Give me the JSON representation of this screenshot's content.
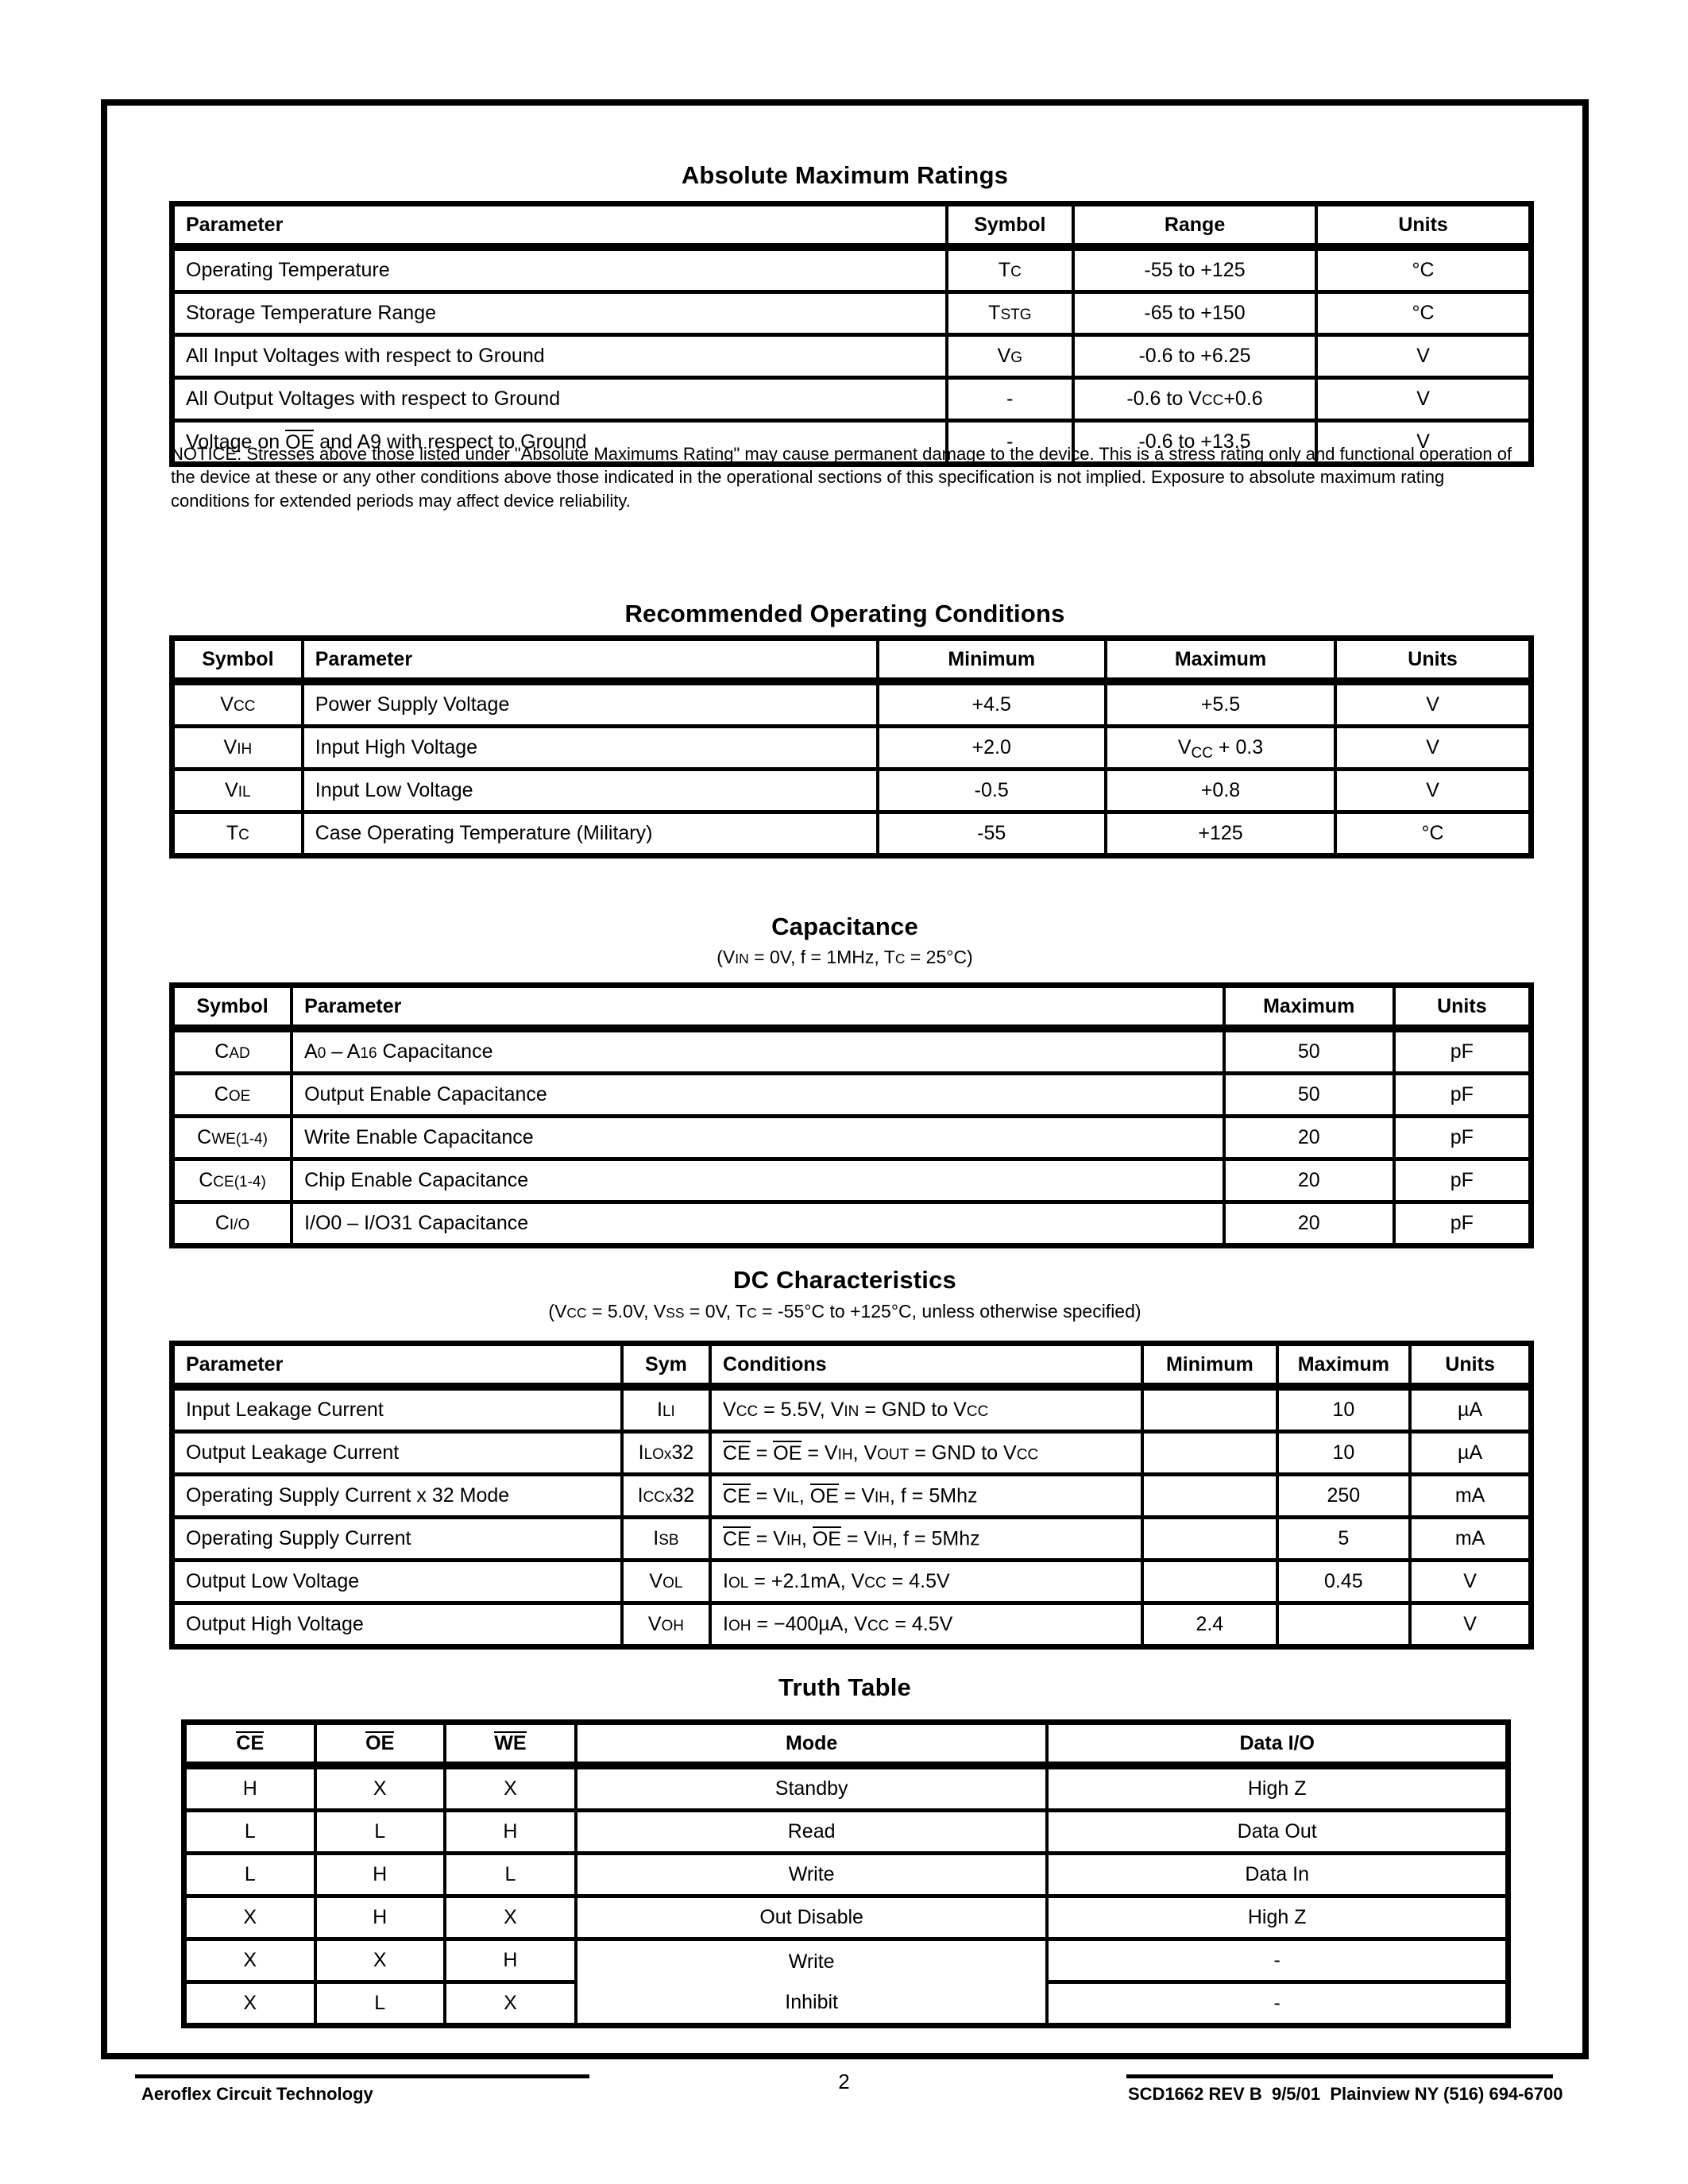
{
  "sections": {
    "abs_max": {
      "title": "Absolute Maximum Ratings",
      "columns": [
        "Parameter",
        "Symbol",
        "Range",
        "Units"
      ],
      "rows": [
        [
          "Operating Temperature",
          [
            {
              "t": "T"
            },
            {
              "s": "C"
            }
          ],
          "-55 to +125",
          "°C"
        ],
        [
          "Storage Temperature Range",
          [
            {
              "t": "T"
            },
            {
              "s": "STG"
            }
          ],
          "-65 to +150",
          "°C"
        ],
        [
          "All Input Voltages with respect to Ground",
          [
            {
              "t": "V"
            },
            {
              "s": "G"
            }
          ],
          "-0.6 to +6.25",
          "V"
        ],
        [
          "All Output Voltages with respect to Ground",
          "-",
          [
            {
              "t": "-0.6 to V"
            },
            {
              "s": "CC"
            },
            {
              "t": "+0.6"
            }
          ],
          "V"
        ],
        [
          [
            {
              "t": "Voltage on "
            },
            {
              "o": "OE"
            },
            {
              "t": " and A9 with respect to Ground"
            }
          ],
          "-",
          "-0.6 to +13.5",
          "V"
        ]
      ]
    },
    "rec_op": {
      "title": "Recommended Operating Conditions",
      "columns": [
        "Symbol",
        "Parameter",
        "Minimum",
        "Maximum",
        "Units"
      ],
      "rows": [
        [
          [
            {
              "t": "V"
            },
            {
              "s": "CC"
            }
          ],
          "Power Supply Voltage",
          "+4.5",
          "+5.5",
          "V"
        ],
        [
          [
            {
              "t": "V"
            },
            {
              "s": "IH"
            }
          ],
          "Input High Voltage",
          "+2.0",
          [
            {
              "t": "V"
            },
            {
              "sub": "CC"
            },
            {
              "t": " + 0.3"
            }
          ],
          "V"
        ],
        [
          [
            {
              "t": "V"
            },
            {
              "s": "IL"
            }
          ],
          "Input Low Voltage",
          "-0.5",
          "+0.8",
          "V"
        ],
        [
          [
            {
              "t": "T"
            },
            {
              "s": "C"
            }
          ],
          "Case Operating Temperature (Military)",
          "-55",
          "+125",
          "°C"
        ]
      ]
    },
    "capacitance": {
      "title": "Capacitance",
      "subtitle": [
        {
          "t": "(V"
        },
        {
          "s": "IN"
        },
        {
          "t": " = 0V, f = 1MHz, T"
        },
        {
          "s": "C"
        },
        {
          "t": " = 25°C)"
        }
      ],
      "columns": [
        "Symbol",
        "Parameter",
        "Maximum",
        "Units"
      ],
      "rows": [
        [
          [
            {
              "t": "C"
            },
            {
              "s": "AD"
            }
          ],
          [
            {
              "t": " A"
            },
            {
              "s": "0"
            },
            {
              "t": " – A"
            },
            {
              "s": "16"
            },
            {
              "t": " Capacitance"
            }
          ],
          "50",
          "pF"
        ],
        [
          [
            {
              "t": "C"
            },
            {
              "s": "OE"
            }
          ],
          "Output Enable Capacitance",
          "50",
          "pF"
        ],
        [
          [
            {
              "t": "C"
            },
            {
              "s": "WE(1-4)"
            }
          ],
          "Write Enable Capacitance",
          "20",
          "pF"
        ],
        [
          [
            {
              "t": "C"
            },
            {
              "s": "CE(1-4)"
            }
          ],
          "Chip Enable Capacitance",
          "20",
          "pF"
        ],
        [
          [
            {
              "t": "C"
            },
            {
              "s": "I/O"
            }
          ],
          "I/O0 – I/O31 Capacitance",
          "20",
          "pF"
        ]
      ]
    },
    "dc": {
      "title": "DC Characteristics",
      "subtitle": [
        {
          "t": "(V"
        },
        {
          "s": "CC"
        },
        {
          "t": " = 5.0V, V"
        },
        {
          "s": "SS"
        },
        {
          "t": " = 0V, T"
        },
        {
          "s": "C"
        },
        {
          "t": " = -55°C to +125°C, unless otherwise specified)"
        }
      ],
      "columns": [
        "Parameter",
        "Sym",
        "Conditions",
        "Minimum",
        "Maximum",
        "Units"
      ],
      "rows": [
        [
          "Input Leakage Current",
          [
            {
              "t": "I"
            },
            {
              "s": "LI"
            }
          ],
          [
            {
              "t": "V"
            },
            {
              "s": "CC"
            },
            {
              "t": " = 5.5V, V"
            },
            {
              "s": "IN"
            },
            {
              "t": " = GND to V"
            },
            {
              "s": "CC"
            }
          ],
          "",
          "10",
          "µA"
        ],
        [
          "Output Leakage Current",
          [
            {
              "t": "I"
            },
            {
              "s": "LOx"
            },
            {
              "t": "32"
            }
          ],
          [
            {
              "o": "CE"
            },
            {
              "t": " = "
            },
            {
              "o": "OE"
            },
            {
              "t": " = V"
            },
            {
              "s": "IH"
            },
            {
              "t": ", V"
            },
            {
              "s": "OUT"
            },
            {
              "t": " = GND to V"
            },
            {
              "s": "CC"
            }
          ],
          "",
          "10",
          "µA"
        ],
        [
          "Operating Supply Current x 32 Mode",
          [
            {
              "t": "I"
            },
            {
              "s": "CCx"
            },
            {
              "t": "32"
            }
          ],
          [
            {
              "o": "CE"
            },
            {
              "t": " = V"
            },
            {
              "s": "IL"
            },
            {
              "t": ", "
            },
            {
              "o": "OE"
            },
            {
              "t": " = V"
            },
            {
              "s": "IH"
            },
            {
              "t": ", f = 5Mhz"
            }
          ],
          "",
          "250",
          "mA"
        ],
        [
          "Operating Supply Current",
          [
            {
              "t": "I"
            },
            {
              "s": "SB"
            }
          ],
          [
            {
              "o": "CE"
            },
            {
              "t": " = V"
            },
            {
              "s": "IH"
            },
            {
              "t": ", "
            },
            {
              "o": "OE"
            },
            {
              "t": " = V"
            },
            {
              "s": "IH"
            },
            {
              "t": ", f = 5Mhz"
            }
          ],
          "",
          "5",
          "mA"
        ],
        [
          "Output Low Voltage",
          [
            {
              "t": "V"
            },
            {
              "s": "OL"
            }
          ],
          [
            {
              "t": "I"
            },
            {
              "s": "OL"
            },
            {
              "t": " = +2.1mA, V"
            },
            {
              "s": "CC"
            },
            {
              "t": " = 4.5V"
            }
          ],
          "",
          "0.45",
          "V"
        ],
        [
          "Output High Voltage",
          [
            {
              "t": "V"
            },
            {
              "s": "OH"
            }
          ],
          [
            {
              "t": "I"
            },
            {
              "s": "OH"
            },
            {
              "t": " = −400µA, V"
            },
            {
              "s": "CC"
            },
            {
              "t": " = 4.5V"
            }
          ],
          "2.4",
          "",
          "V"
        ]
      ]
    },
    "truth": {
      "title": "Truth Table",
      "columns": [
        [
          {
            "o": "CE"
          }
        ],
        [
          {
            "o": "OE"
          }
        ],
        [
          {
            "o": "WE"
          }
        ],
        "Mode",
        "Data I/O"
      ],
      "rows": [
        [
          "H",
          "X",
          "X",
          "Standby",
          "High Z"
        ],
        [
          "L",
          "L",
          "H",
          "Read",
          "Data Out"
        ],
        [
          "L",
          "H",
          "L",
          "Write",
          "Data In"
        ],
        [
          "X",
          "H",
          "X",
          "Out Disable",
          "High Z"
        ],
        [
          "X",
          "X",
          "H",
          {
            "rowspan": 2,
            "lines": [
              "Write",
              "Inhibit"
            ]
          },
          "-"
        ],
        [
          "X",
          "L",
          "X",
          null,
          "-"
        ]
      ]
    }
  },
  "notice": "NOTICE: Stresses above those listed under \"Absolute Maximums Rating\" may cause permanent damage to the device. This is a stress rating only and functional operation of the device at these or any other conditions above those indicated in the operational sections of this specification is not implied. Exposure to absolute maximum rating conditions for extended periods may affect device reliability.",
  "footer": {
    "left": "Aeroflex Circuit Technology",
    "page": "2",
    "right": "SCD1662 REV B  9/5/01  Plainview NY (516) 694-6700"
  }
}
